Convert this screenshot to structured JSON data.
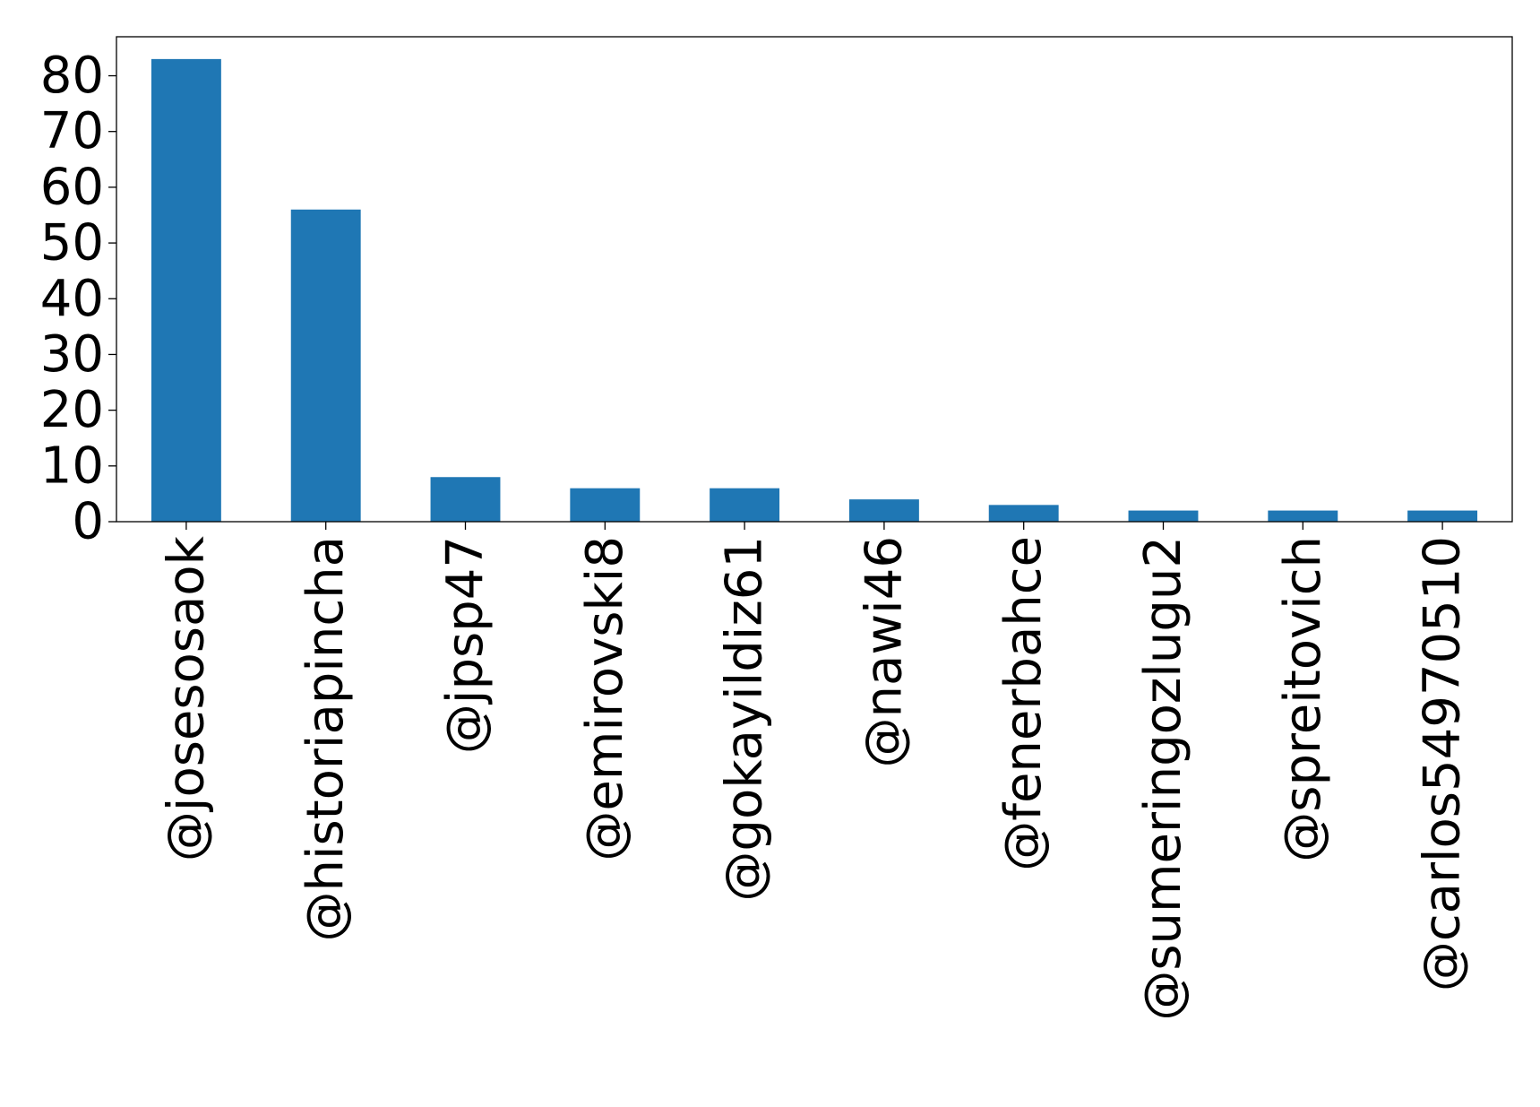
{
  "chart_data": {
    "type": "bar",
    "title": "",
    "xlabel": "",
    "ylabel": "",
    "categories": [
      "@josesosaok",
      "@historiapincha",
      "@jpsp47",
      "@emirovski8",
      "@gokayildiz61",
      "@nawi46",
      "@fenerbahce",
      "@sumeringozlugu2",
      "@spreitovich",
      "@carlos54970510"
    ],
    "values": [
      83,
      56,
      8,
      6,
      6,
      4,
      3,
      2,
      2,
      2
    ],
    "yticks": [
      "0",
      "10",
      "20",
      "30",
      "40",
      "50",
      "60",
      "70",
      "80"
    ],
    "ylim": [
      0,
      87
    ],
    "grid": false,
    "legend": "none",
    "bar_color": "#1f77b4"
  }
}
